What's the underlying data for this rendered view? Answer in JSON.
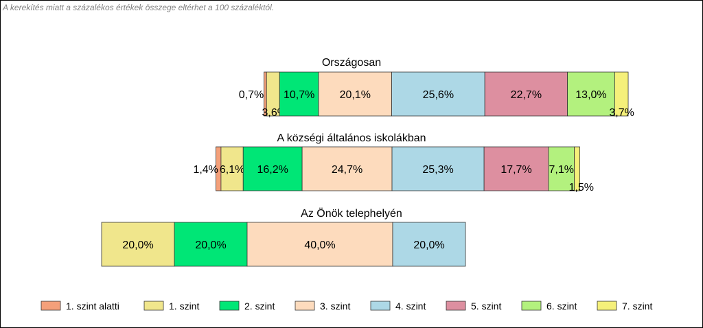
{
  "note": "A kerekítés miatt a  százalékos értékek összege eltérhet a 100 százaléktól.",
  "chart_data": {
    "type": "bar",
    "orientation": "horizontal",
    "stacked": true,
    "axis_visible": false,
    "legend_position": "bottom",
    "categories": [
      "1. szint alatti",
      "1. szint",
      "2. szint",
      "3. szint",
      "4. szint",
      "5. szint",
      "6. szint",
      "7. szint"
    ],
    "colors": [
      "#f4a07a",
      "#f0e68c",
      "#00e676",
      "#fddbbd",
      "#add8e6",
      "#dd8fa0",
      "#b3f17e",
      "#f5f07a"
    ],
    "rows": [
      {
        "title": "Országosan",
        "values": [
          0.7,
          3.6,
          10.7,
          20.1,
          25.6,
          22.7,
          13.0,
          3.7
        ],
        "labels": [
          "0,7%",
          "3,6%",
          "10,7%",
          "20,1%",
          "25,6%",
          "22,7%",
          "13,0%",
          "3,7%"
        ]
      },
      {
        "title": "A községi általános iskolákban",
        "values": [
          1.4,
          6.1,
          16.2,
          24.7,
          25.3,
          17.7,
          7.1,
          1.5
        ],
        "labels": [
          "1,4%",
          "6,1%",
          "16,2%",
          "24,7%",
          "25,3%",
          "17,7%",
          "7,1%",
          "1,5%"
        ]
      },
      {
        "title": "Az Önök telephelyén",
        "values": [
          0,
          20.0,
          20.0,
          40.0,
          20.0,
          0,
          0,
          0
        ],
        "labels": [
          "",
          "20,0%",
          "20,0%",
          "40,0%",
          "20,0%",
          "",
          "",
          ""
        ]
      }
    ]
  }
}
